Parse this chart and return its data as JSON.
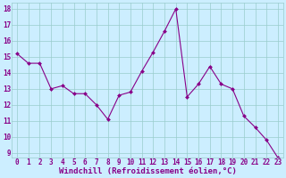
{
  "x": [
    0,
    1,
    2,
    3,
    4,
    5,
    6,
    7,
    8,
    9,
    10,
    11,
    12,
    13,
    14,
    15,
    16,
    17,
    18,
    19,
    20,
    21,
    22,
    23
  ],
  "y": [
    15.2,
    14.6,
    14.6,
    13.0,
    13.2,
    12.7,
    12.7,
    12.0,
    11.1,
    12.6,
    12.8,
    14.1,
    15.3,
    16.6,
    18.0,
    12.5,
    13.3,
    14.4,
    13.3,
    13.0,
    11.3,
    10.6,
    9.8,
    8.7
  ],
  "line_color": "#880088",
  "marker_color": "#880088",
  "bg_color": "#cceeff",
  "grid_color": "#99cccc",
  "xlabel": "Windchill (Refroidissement éolien,°C)",
  "xlabel_color": "#880088",
  "ylabel_ticks": [
    9,
    10,
    11,
    12,
    13,
    14,
    15,
    16,
    17,
    18
  ],
  "ylim": [
    8.7,
    18.4
  ],
  "xlim": [
    -0.5,
    23.5
  ],
  "tick_fontsize": 5.5,
  "xlabel_fontsize": 6.5
}
